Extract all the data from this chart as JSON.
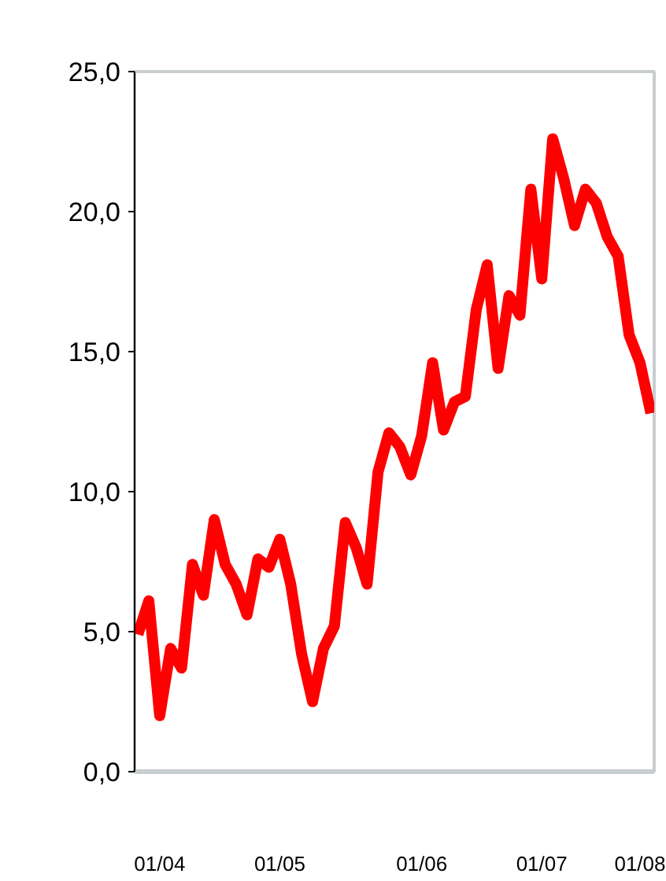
{
  "chart_data": {
    "type": "line",
    "color": "#ff0000",
    "categories": [
      null,
      null,
      "01/04",
      null,
      null,
      null,
      null,
      null,
      null,
      null,
      null,
      null,
      null,
      "01/05",
      null,
      null,
      null,
      null,
      null,
      null,
      null,
      null,
      null,
      null,
      null,
      null,
      "01/06",
      null,
      null,
      null,
      null,
      null,
      null,
      null,
      null,
      null,
      null,
      "01/07",
      null,
      null,
      null,
      null,
      null,
      null,
      null,
      null,
      "01/08",
      null
    ],
    "values": [
      4.9,
      6.1,
      2.0,
      4.4,
      3.7,
      7.4,
      6.3,
      9.0,
      7.4,
      6.7,
      5.6,
      7.6,
      7.3,
      8.3,
      6.7,
      4.2,
      2.5,
      4.4,
      5.2,
      8.9,
      8.0,
      6.7,
      10.7,
      12.1,
      11.6,
      10.6,
      12.0,
      14.6,
      12.2,
      13.2,
      13.4,
      16.5,
      18.1,
      14.4,
      17.0,
      16.3,
      20.8,
      17.6,
      22.6,
      21.2,
      19.5,
      20.8,
      20.3,
      19.1,
      18.4,
      15.6,
      14.6,
      12.8
    ],
    "ylim": [
      0,
      25
    ],
    "yticks": [
      {
        "value": 0,
        "label": "0,0"
      },
      {
        "value": 5,
        "label": "5,0"
      },
      {
        "value": 10,
        "label": "10,0"
      },
      {
        "value": 15,
        "label": "15,0"
      },
      {
        "value": 20,
        "label": "20,0"
      },
      {
        "value": 25,
        "label": "25,0"
      }
    ],
    "marker": "none",
    "line_style": "solid"
  }
}
